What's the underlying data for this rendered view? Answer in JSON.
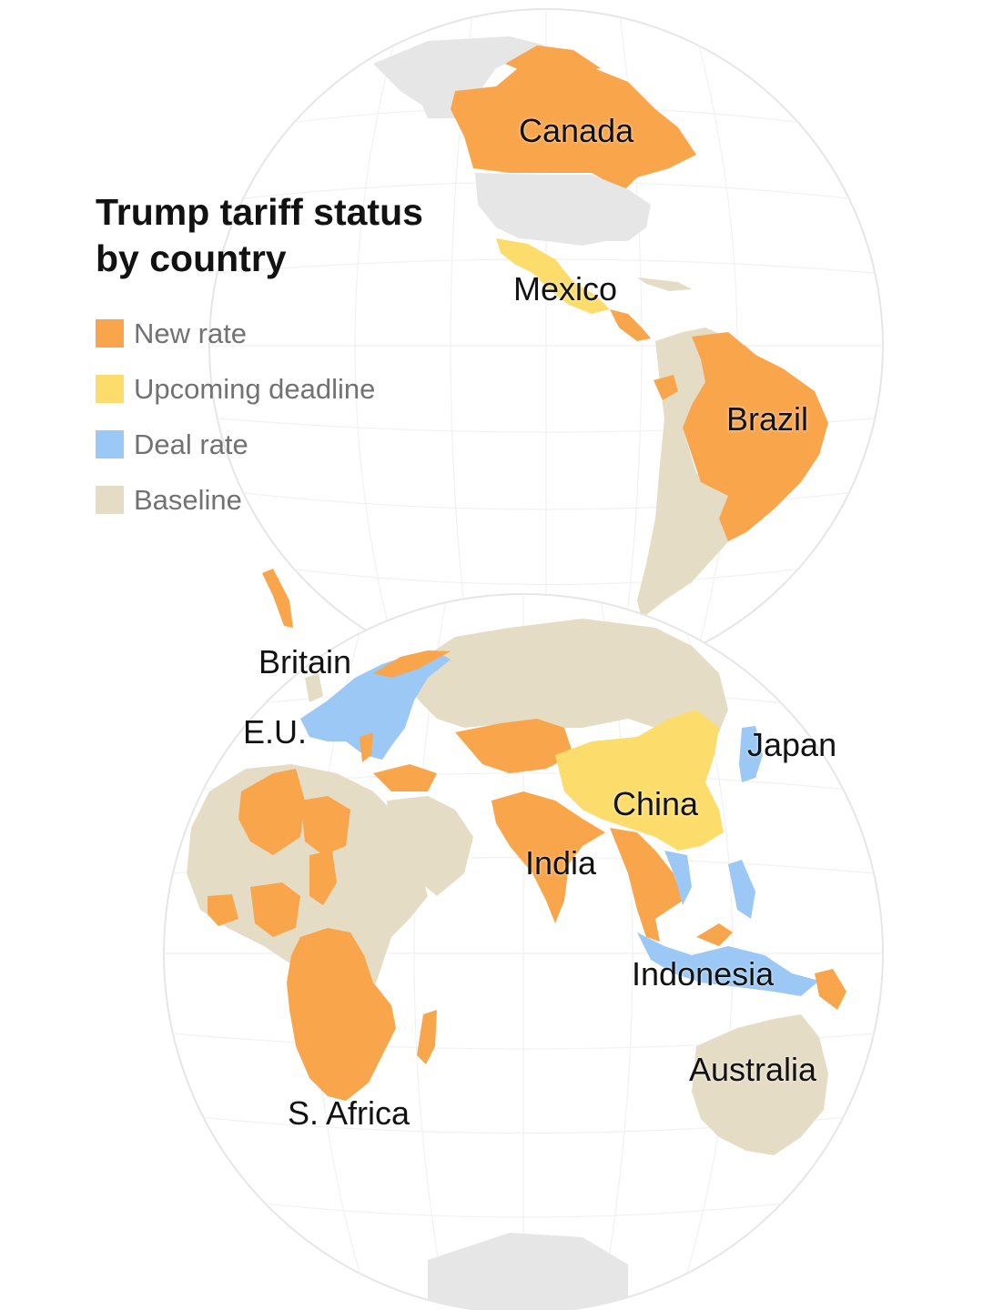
{
  "title": "Trump tariff status by country",
  "title_lines": [
    "Trump tariff status",
    "by country"
  ],
  "legend": [
    {
      "key": "new",
      "label": "New rate",
      "color": "#F9A54C"
    },
    {
      "key": "upcoming",
      "label": "Upcoming deadline",
      "color": "#FCDD6C"
    },
    {
      "key": "deal",
      "label": "Deal rate",
      "color": "#9BC8F4"
    },
    {
      "key": "baseline",
      "label": "Baseline",
      "color": "#E5DCC6"
    }
  ],
  "no_data_color": "#E6E6E6",
  "labels": {
    "canada": "Canada",
    "mexico": "Mexico",
    "brazil": "Brazil",
    "britain": "Britain",
    "eu": "E.U.",
    "japan": "Japan",
    "china": "China",
    "india": "India",
    "indonesia": "Indonesia",
    "australia": "Australia",
    "s_africa": "S. Africa"
  },
  "countries": {
    "Canada": "new",
    "Mexico": "upcoming",
    "Brazil": "new",
    "Britain": "baseline",
    "E.U.": "deal",
    "Japan": "deal",
    "China": "upcoming",
    "India": "new",
    "Indonesia": "deal",
    "Australia": "baseline",
    "S. Africa": "new"
  }
}
